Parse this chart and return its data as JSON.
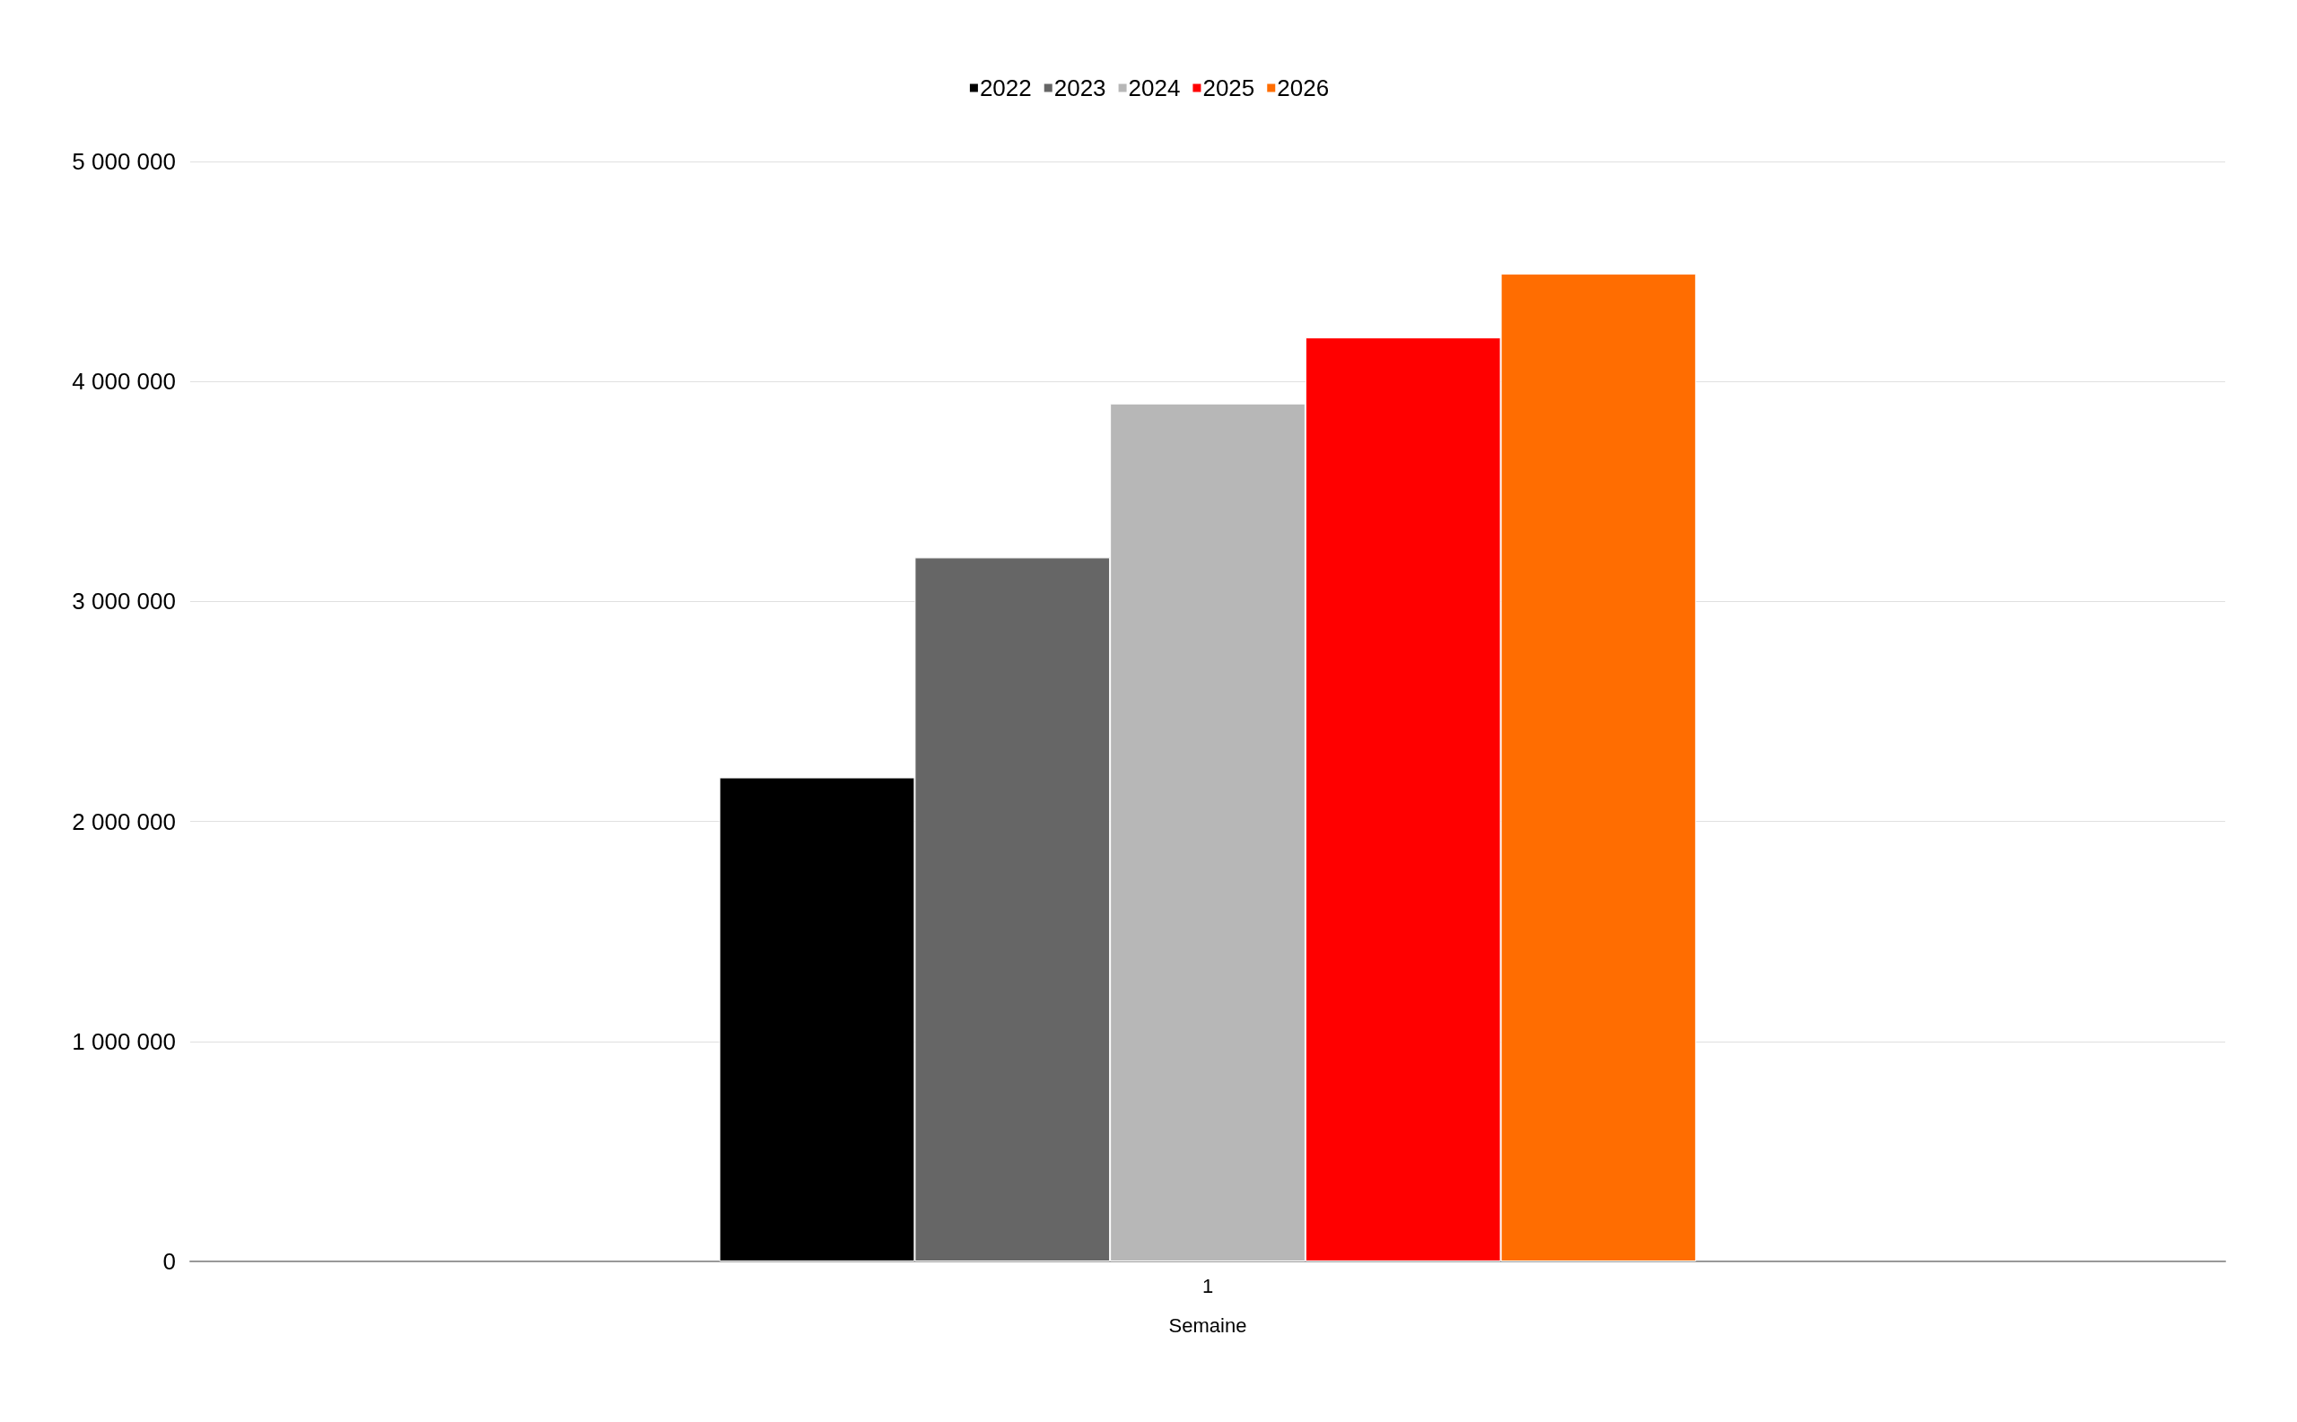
{
  "chart_data": {
    "type": "bar",
    "xlabel": "Semaine",
    "categories": [
      "1"
    ],
    "series": [
      {
        "name": "2022",
        "color": "#000000",
        "values": [
          2200000
        ]
      },
      {
        "name": "2023",
        "color": "#666666",
        "values": [
          3200000
        ]
      },
      {
        "name": "2024",
        "color": "#b7b7b7",
        "values": [
          3900000
        ]
      },
      {
        "name": "2025",
        "color": "#ff0000",
        "values": [
          4200000
        ]
      },
      {
        "name": "2026",
        "color": "#ff6d01",
        "values": [
          4490000
        ]
      }
    ],
    "ylim": [
      0,
      5000000
    ],
    "yticks": [
      {
        "value": 0,
        "label": "0"
      },
      {
        "value": 1000000,
        "label": "1 000 000"
      },
      {
        "value": 2000000,
        "label": "2 000 000"
      },
      {
        "value": 3000000,
        "label": "3 000 000"
      },
      {
        "value": 4000000,
        "label": "4 000 000"
      },
      {
        "value": 5000000,
        "label": "5 000 000"
      }
    ],
    "grid": "y",
    "legend": "top"
  }
}
